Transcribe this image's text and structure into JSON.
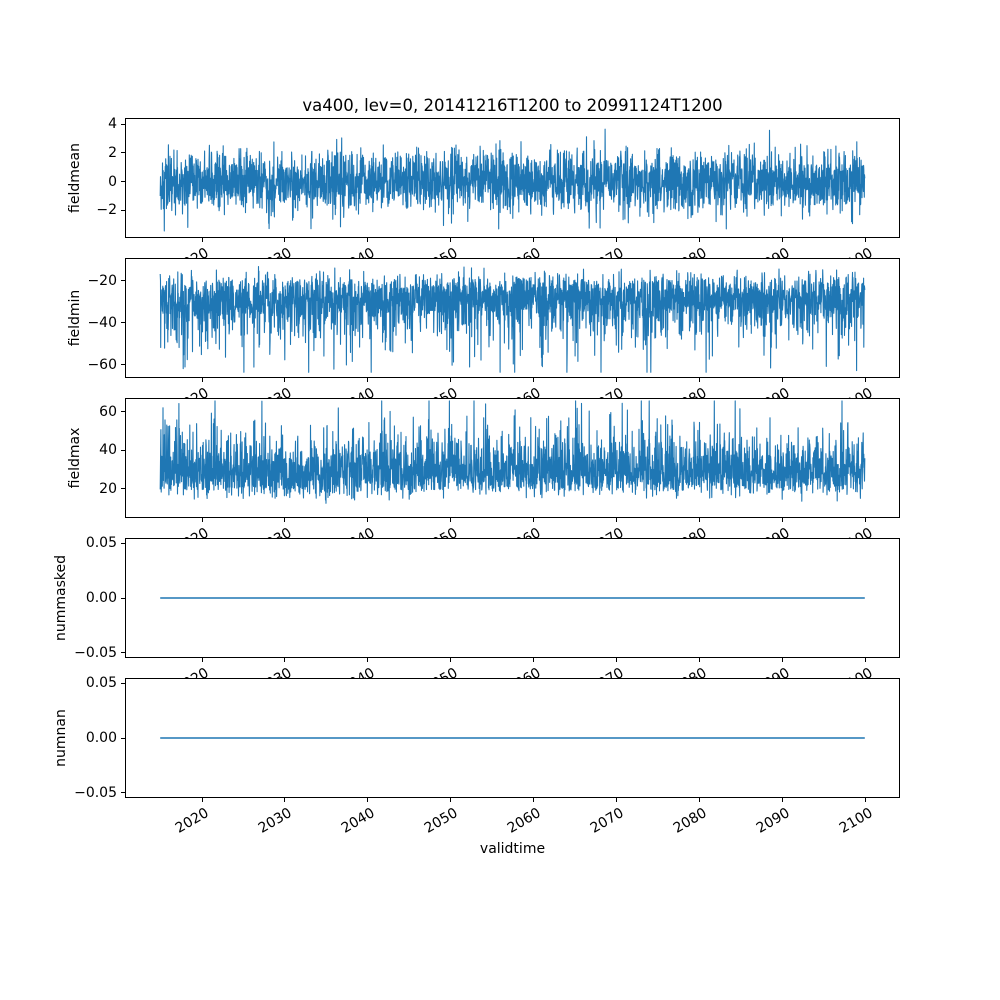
{
  "chart_data": {
    "type": "line",
    "title": "va400, lev=0, 20141216T1200 to 20991124T1200",
    "xlabel": "validtime",
    "grid": false,
    "legend": "none",
    "line_color": "#1f77b4",
    "x": {
      "label": "validtime",
      "start": 2014.96,
      "end": 2099.9,
      "lim": [
        2010.71,
        2104.15
      ],
      "ticks": [
        2020,
        2030,
        2040,
        2050,
        2060,
        2070,
        2080,
        2090,
        2100
      ],
      "tick_labels": [
        "2020",
        "2030",
        "2040",
        "2050",
        "2060",
        "2070",
        "2080",
        "2090",
        "2100"
      ],
      "tick_rotation_deg": 30,
      "n_points": 3100
    },
    "panels": [
      {
        "ylabel": "fieldmean",
        "ylim": [
          -3.93,
          4.42
        ],
        "yticks": [
          {
            "v": 4,
            "t": "4"
          },
          {
            "v": 2,
            "t": "2"
          },
          {
            "v": 0,
            "t": "0"
          },
          {
            "v": -2,
            "t": "−2"
          }
        ],
        "series": {
          "kind": "gaussian",
          "mean": 0,
          "std": 1.05,
          "clip": [
            -3.55,
            4.0
          ],
          "seed": 42,
          "observed_min": -3.5,
          "observed_max": 4.0
        }
      },
      {
        "ylabel": "fieldmin",
        "ylim": [
          -66.2,
          -9.3
        ],
        "yticks": [
          {
            "v": -20,
            "t": "−20"
          },
          {
            "v": -40,
            "t": "−40"
          },
          {
            "v": -60,
            "t": "−60"
          }
        ],
        "series": {
          "kind": "gumbel_min",
          "mu": -26.8,
          "beta": 6.64,
          "clip": [
            -63.5,
            -12.0
          ],
          "seed": 7,
          "observed_min": -63,
          "observed_max": -12
        }
      },
      {
        "ylabel": "fieldmax",
        "ylim": [
          5.0,
          67.0
        ],
        "yticks": [
          {
            "v": 60,
            "t": "60"
          },
          {
            "v": 40,
            "t": "40"
          },
          {
            "v": 20,
            "t": "20"
          }
        ],
        "series": {
          "kind": "gumbel_max",
          "mu": 26.4,
          "beta": 6.9,
          "clip": [
            7.8,
            65.5
          ],
          "seed": 1234,
          "observed_min": 8,
          "observed_max": 65
        }
      },
      {
        "ylabel": "nummasked",
        "ylim": [
          -0.055,
          0.055
        ],
        "yticks": [
          {
            "v": 0.05,
            "t": "0.05"
          },
          {
            "v": 0,
            "t": "0.00"
          },
          {
            "v": -0.05,
            "t": "−0.05"
          }
        ],
        "series": {
          "kind": "constant",
          "value": 0,
          "seed": 1
        }
      },
      {
        "ylabel": "numnan",
        "ylim": [
          -0.055,
          0.055
        ],
        "yticks": [
          {
            "v": 0.05,
            "t": "0.05"
          },
          {
            "v": 0,
            "t": "0.00"
          },
          {
            "v": -0.05,
            "t": "−0.05"
          }
        ],
        "series": {
          "kind": "constant",
          "value": 0,
          "seed": 2
        }
      }
    ]
  }
}
